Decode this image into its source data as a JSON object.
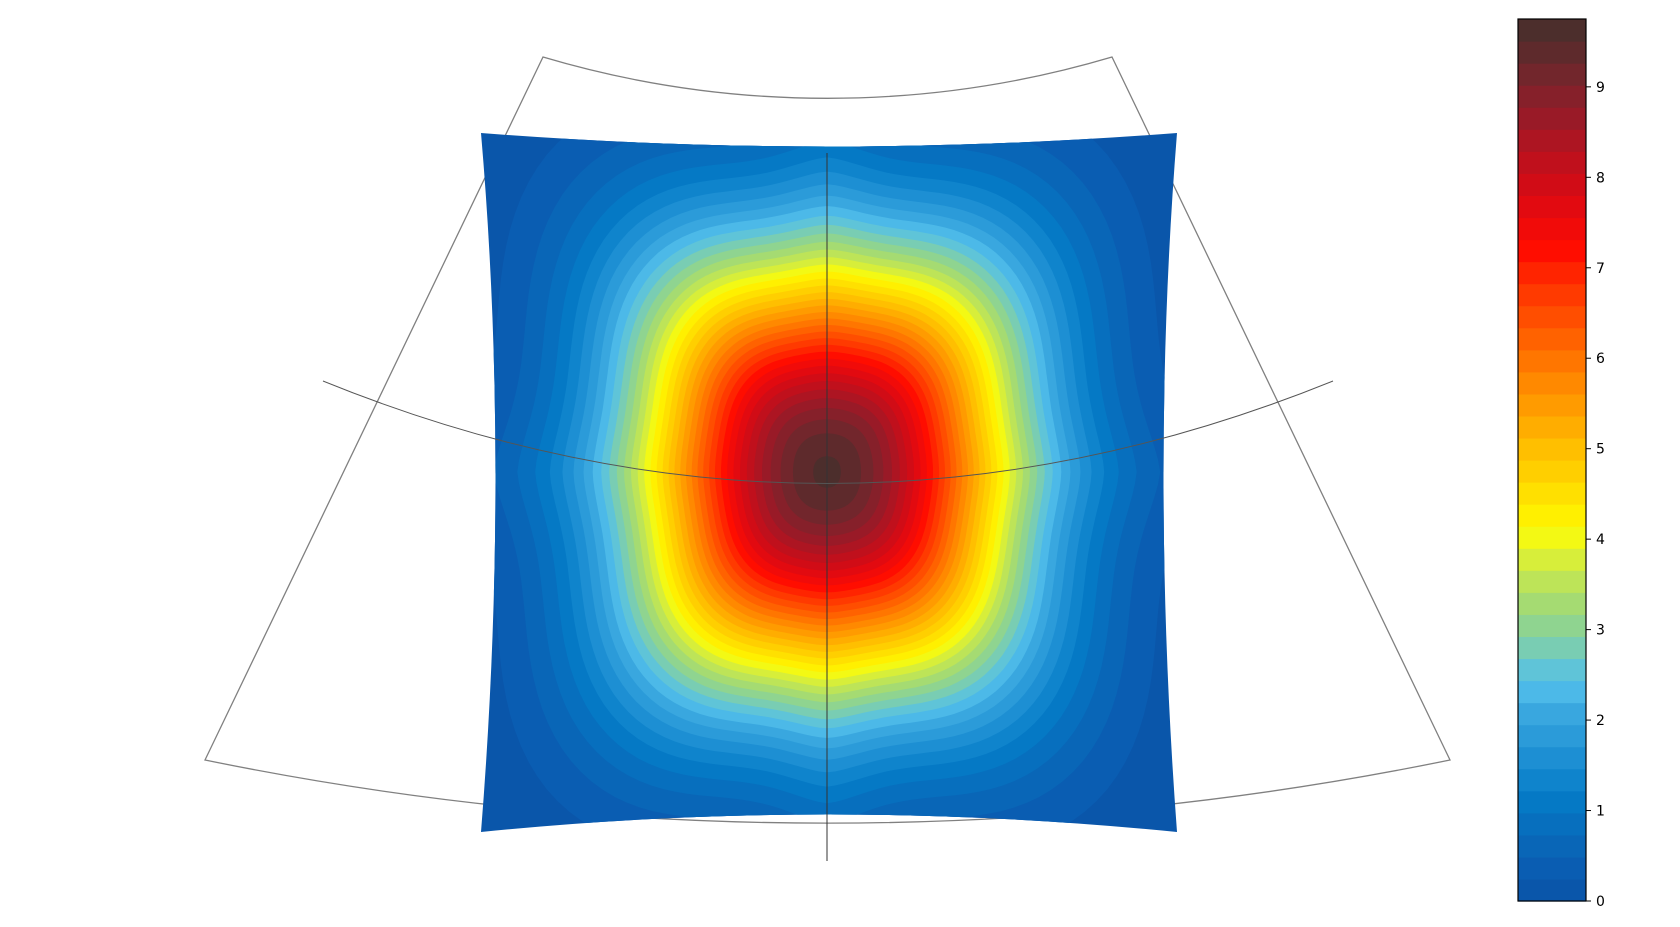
{
  "chart_data": {
    "type": "heatmap",
    "title": "",
    "xlabel": "",
    "ylabel": "",
    "projection": "conic map (Lambert-like sector) with graticule",
    "field_description": "filled contour of a single peak centred on the central meridian, elongated along two diagonals",
    "peak_value": 9.75,
    "levels": [
      0,
      0.25,
      0.5,
      0.75,
      1,
      1.25,
      1.5,
      1.75,
      2,
      2.25,
      2.5,
      2.75,
      3,
      3.25,
      3.5,
      3.75,
      4,
      4.25,
      4.5,
      4.75,
      5,
      5.25,
      5.5,
      5.75,
      6,
      6.25,
      6.5,
      6.75,
      7,
      7.25,
      7.5,
      7.75,
      8,
      8.25,
      8.5,
      8.75,
      9,
      9.25,
      9.5,
      9.75
    ],
    "colorbar": {
      "range": [
        0,
        9.75
      ],
      "ticks": [
        "0",
        "1",
        "2",
        "3",
        "4",
        "5",
        "6",
        "7",
        "8",
        "9"
      ],
      "colors": [
        "#0a56aa",
        "#0a5db2",
        "#0966b7",
        "#076fbe",
        "#0579c5",
        "#0f84cc",
        "#1d8fd3",
        "#2b9bd9",
        "#39a7df",
        "#4cb9e8",
        "#5fc4d8",
        "#79cdb3",
        "#8fd490",
        "#a5db72",
        "#bde458",
        "#d7ee3a",
        "#f3f914",
        "#fff000",
        "#ffe000",
        "#ffcf00",
        "#ffbf00",
        "#ffad00",
        "#ff9b00",
        "#ff8900",
        "#ff7600",
        "#ff6200",
        "#ff4e00",
        "#ff3a00",
        "#ff2400",
        "#ff0d00",
        "#f10b09",
        "#e20a10",
        "#d10c16",
        "#c0101c",
        "#ad1522",
        "#991a27",
        "#86202a",
        "#72262c",
        "#5e2a2c",
        "#4c2e2c"
      ]
    }
  }
}
